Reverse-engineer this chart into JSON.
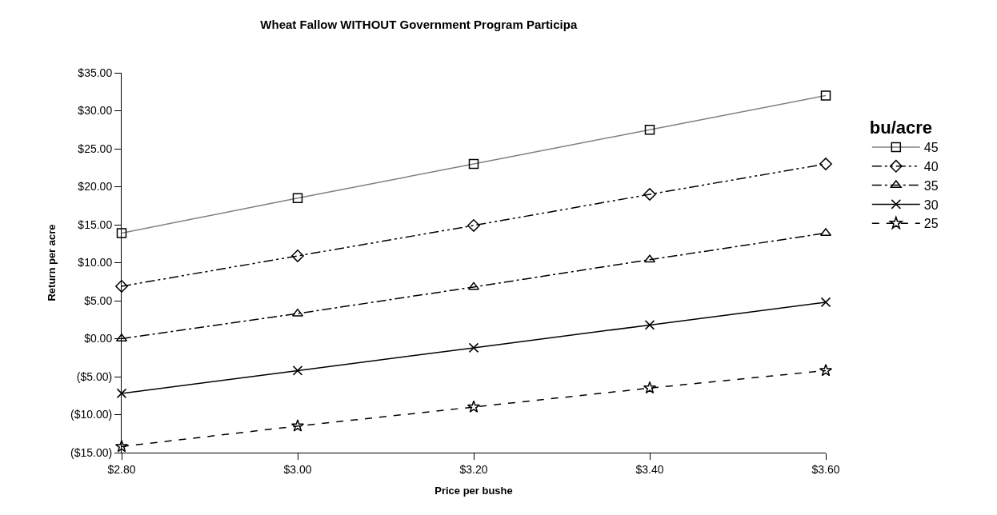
{
  "chart_data": {
    "type": "line",
    "title": "Wheat Fallow WITHOUT Government Program Participa",
    "xlabel": "Price per bushe",
    "ylabel": "Return per acre",
    "legend_title": "bu/acre",
    "legend": "right",
    "x": [
      2.8,
      3.0,
      3.2,
      3.4,
      3.6
    ],
    "xlim": [
      2.8,
      3.6
    ],
    "xticks": [
      {
        "value": 2.8,
        "label": "$2.80"
      },
      {
        "value": 3.0,
        "label": "$3.00"
      },
      {
        "value": 3.2,
        "label": "$3.20"
      },
      {
        "value": 3.4,
        "label": "$3.40"
      },
      {
        "value": 3.6,
        "label": "$3.60"
      }
    ],
    "ylim": [
      -15,
      35
    ],
    "yticks": [
      {
        "value": -15,
        "label": "($15.00)"
      },
      {
        "value": -10,
        "label": "($10.00)"
      },
      {
        "value": -5,
        "label": "($5.00)"
      },
      {
        "value": 0,
        "label": "$0.00"
      },
      {
        "value": 5,
        "label": "$5.00"
      },
      {
        "value": 10,
        "label": "$10.00"
      },
      {
        "value": 15,
        "label": "$15.00"
      },
      {
        "value": 20,
        "label": "$20.00"
      },
      {
        "value": 25,
        "label": "$25.00"
      },
      {
        "value": 30,
        "label": "$30.00"
      },
      {
        "value": 35,
        "label": "$35.00"
      }
    ],
    "series": [
      {
        "name": "45",
        "color": "#808080",
        "marker": "square",
        "line_style": "solid",
        "values": [
          13.9,
          18.5,
          23.0,
          27.5,
          32.0
        ]
      },
      {
        "name": "40",
        "color": "#000000",
        "marker": "diamond",
        "line_style": "dashdotdot",
        "values": [
          6.9,
          10.9,
          14.9,
          19.0,
          23.0
        ]
      },
      {
        "name": "35",
        "color": "#000000",
        "marker": "triangle",
        "line_style": "dashdot",
        "values": [
          0.0,
          3.3,
          6.8,
          10.4,
          13.9
        ]
      },
      {
        "name": "30",
        "color": "#000000",
        "marker": "cross",
        "line_style": "solid",
        "values": [
          -7.2,
          -4.2,
          -1.2,
          1.8,
          4.8
        ]
      },
      {
        "name": "25",
        "color": "#000000",
        "marker": "star",
        "line_style": "dashed",
        "values": [
          -14.2,
          -11.5,
          -9.0,
          -6.5,
          -4.2
        ]
      }
    ]
  }
}
